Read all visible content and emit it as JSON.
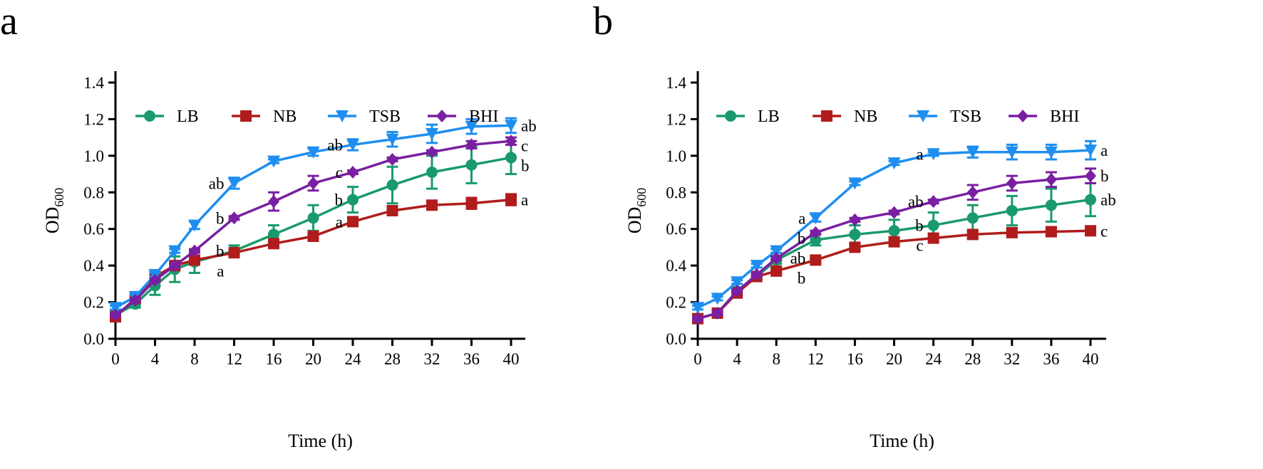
{
  "chart_data": [
    {
      "panel_label": "a",
      "type": "line",
      "xlabel": "Time (h)",
      "ylabel_main": "OD",
      "ylabel_sub": "600",
      "xlim": [
        0,
        40
      ],
      "ylim": [
        0,
        1.4
      ],
      "xticks": [
        0,
        4,
        8,
        12,
        16,
        20,
        24,
        28,
        32,
        36,
        40
      ],
      "yticks": [
        "0.0",
        "0.2",
        "0.4",
        "0.6",
        "0.8",
        "1.0",
        "1.2",
        "1.4"
      ],
      "grid": false,
      "legend_position": "top",
      "x": [
        0,
        2,
        4,
        6,
        8,
        12,
        16,
        20,
        24,
        28,
        32,
        36,
        40
      ],
      "series": [
        {
          "name": "LB",
          "color": "#1a9a6c",
          "marker": "circle",
          "values": [
            0.13,
            0.19,
            0.29,
            0.38,
            0.42,
            0.48,
            0.57,
            0.66,
            0.76,
            0.84,
            0.91,
            0.95,
            0.99
          ],
          "errors": [
            0.02,
            0.02,
            0.05,
            0.07,
            0.06,
            0.03,
            0.05,
            0.07,
            0.07,
            0.1,
            0.09,
            0.1,
            0.09
          ]
        },
        {
          "name": "NB",
          "color": "#b01c1c",
          "marker": "square",
          "values": [
            0.12,
            0.22,
            0.34,
            0.4,
            0.43,
            0.47,
            0.52,
            0.56,
            0.64,
            0.7,
            0.73,
            0.74,
            0.76
          ],
          "errors": [
            0.02,
            0.02,
            0.02,
            0.02,
            0.02,
            0.01,
            0.02,
            0.02,
            0.02,
            0.02,
            0.02,
            0.03,
            0.03
          ]
        },
        {
          "name": "TSB",
          "color": "#1e8ef0",
          "marker": "triangle-down",
          "values": [
            0.17,
            0.23,
            0.35,
            0.48,
            0.62,
            0.85,
            0.97,
            1.02,
            1.06,
            1.09,
            1.12,
            1.16,
            1.165
          ],
          "errors": [
            0.01,
            0.01,
            0.01,
            0.01,
            0.02,
            0.03,
            0.01,
            0.02,
            0.03,
            0.04,
            0.05,
            0.04,
            0.04
          ]
        },
        {
          "name": "BHI",
          "color": "#7a1fa2",
          "marker": "diamond",
          "values": [
            0.13,
            0.21,
            0.32,
            0.4,
            0.48,
            0.66,
            0.75,
            0.85,
            0.91,
            0.98,
            1.02,
            1.06,
            1.08
          ],
          "errors": [
            0.01,
            0.01,
            0.01,
            0.01,
            0.01,
            0.01,
            0.05,
            0.04,
            0.01,
            0.01,
            0.01,
            0.02,
            0.02
          ]
        }
      ],
      "annotations": [
        {
          "x": 12,
          "series": "TSB",
          "text": "ab"
        },
        {
          "x": 12,
          "series": "BHI",
          "text": "b"
        },
        {
          "x": 12,
          "series": "LB",
          "text": "b"
        },
        {
          "x": 12,
          "series": "NB",
          "text": "a"
        },
        {
          "x": 24,
          "series": "TSB",
          "text": "ab"
        },
        {
          "x": 24,
          "series": "BHI",
          "text": "c"
        },
        {
          "x": 24,
          "series": "LB",
          "text": "b"
        },
        {
          "x": 24,
          "series": "NB",
          "text": "a"
        },
        {
          "x": 40,
          "series": "TSB",
          "text": "ab"
        },
        {
          "x": 40,
          "series": "BHI",
          "text": "c"
        },
        {
          "x": 40,
          "series": "LB",
          "text": "b"
        },
        {
          "x": 40,
          "series": "NB",
          "text": "a"
        }
      ]
    },
    {
      "panel_label": "b",
      "type": "line",
      "xlabel": "Time (h)",
      "ylabel_main": "OD",
      "ylabel_sub": "600",
      "xlim": [
        0,
        40
      ],
      "ylim": [
        0,
        1.4
      ],
      "xticks": [
        0,
        4,
        8,
        12,
        16,
        20,
        24,
        28,
        32,
        36,
        40
      ],
      "yticks": [
        "0.0",
        "0.2",
        "0.4",
        "0.6",
        "0.8",
        "1.0",
        "1.2",
        "1.4"
      ],
      "grid": false,
      "legend_position": "top",
      "x": [
        0,
        2,
        4,
        6,
        8,
        12,
        16,
        20,
        24,
        28,
        32,
        36,
        40
      ],
      "series": [
        {
          "name": "LB",
          "color": "#1a9a6c",
          "marker": "circle",
          "values": [
            0.11,
            0.14,
            0.26,
            0.34,
            0.43,
            0.54,
            0.57,
            0.59,
            0.62,
            0.66,
            0.7,
            0.73,
            0.76
          ],
          "errors": [
            0.01,
            0.01,
            0.02,
            0.02,
            0.02,
            0.03,
            0.05,
            0.06,
            0.07,
            0.07,
            0.08,
            0.09,
            0.09
          ]
        },
        {
          "name": "NB",
          "color": "#b01c1c",
          "marker": "square",
          "values": [
            0.11,
            0.14,
            0.25,
            0.34,
            0.37,
            0.43,
            0.5,
            0.53,
            0.55,
            0.57,
            0.58,
            0.585,
            0.59
          ],
          "errors": [
            0.01,
            0.01,
            0.01,
            0.01,
            0.01,
            0.01,
            0.02,
            0.02,
            0.02,
            0.02,
            0.02,
            0.02,
            0.02
          ]
        },
        {
          "name": "TSB",
          "color": "#1e8ef0",
          "marker": "triangle-down",
          "values": [
            0.17,
            0.22,
            0.31,
            0.4,
            0.48,
            0.66,
            0.85,
            0.96,
            1.01,
            1.02,
            1.02,
            1.02,
            1.03
          ],
          "errors": [
            0.01,
            0.01,
            0.01,
            0.01,
            0.01,
            0.02,
            0.01,
            0.01,
            0.01,
            0.03,
            0.04,
            0.04,
            0.05
          ]
        },
        {
          "name": "BHI",
          "color": "#7a1fa2",
          "marker": "diamond",
          "values": [
            0.11,
            0.14,
            0.26,
            0.35,
            0.44,
            0.58,
            0.65,
            0.69,
            0.75,
            0.8,
            0.85,
            0.87,
            0.89
          ],
          "errors": [
            0.01,
            0.01,
            0.01,
            0.01,
            0.01,
            0.01,
            0.01,
            0.01,
            0.01,
            0.04,
            0.04,
            0.04,
            0.04
          ]
        }
      ],
      "annotations": [
        {
          "x": 12,
          "series": "TSB",
          "text": "a"
        },
        {
          "x": 12,
          "series": "BHI",
          "text": "b"
        },
        {
          "x": 12,
          "series": "LB",
          "text": "ab"
        },
        {
          "x": 12,
          "series": "NB",
          "text": "b"
        },
        {
          "x": 24,
          "series": "TSB",
          "text": "a"
        },
        {
          "x": 24,
          "series": "BHI",
          "text": "ab"
        },
        {
          "x": 24,
          "series": "LB",
          "text": "b"
        },
        {
          "x": 24,
          "series": "NB",
          "text": "c"
        },
        {
          "x": 40,
          "series": "TSB",
          "text": "a"
        },
        {
          "x": 40,
          "series": "BHI",
          "text": "b"
        },
        {
          "x": 40,
          "series": "LB",
          "text": "ab"
        },
        {
          "x": 40,
          "series": "NB",
          "text": "c"
        }
      ]
    }
  ]
}
